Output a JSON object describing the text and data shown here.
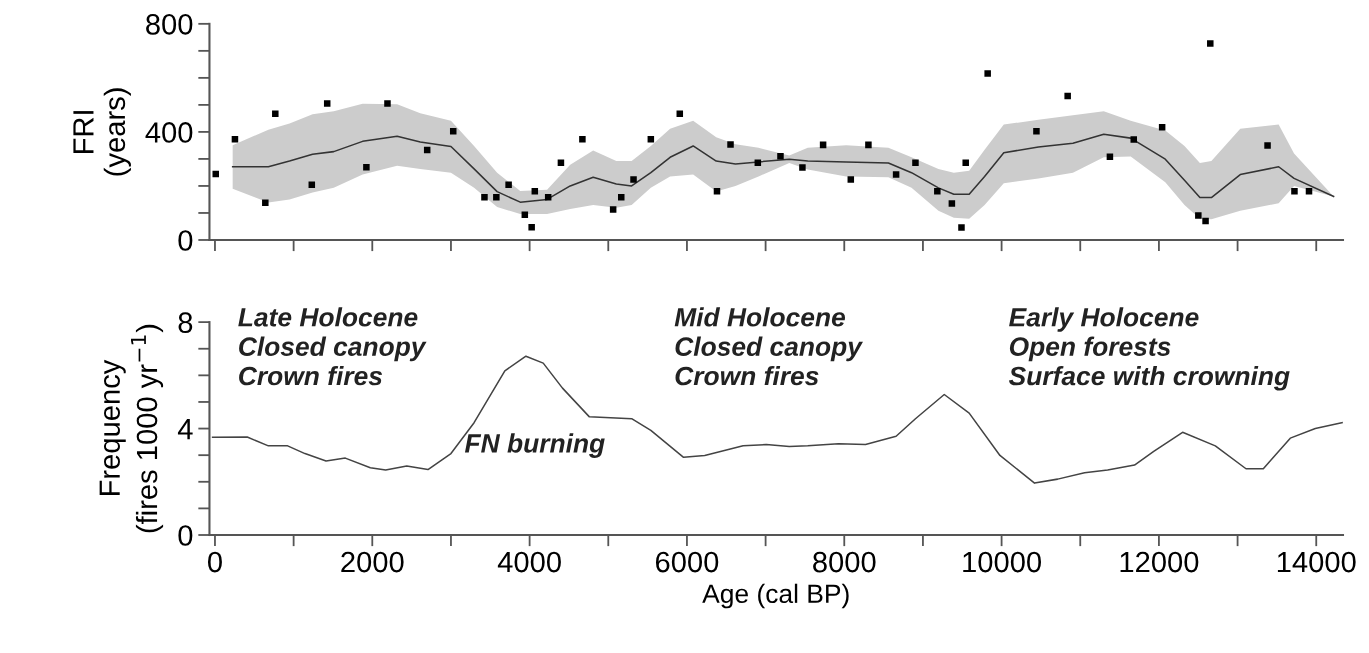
{
  "chart_data": [
    {
      "type": "scatter",
      "ylabel": "FRI\n(years)",
      "xlim": [
        -70,
        14340
      ],
      "ylim": [
        0,
        800
      ],
      "tick_labels": "y",
      "grid": false,
      "xticks": [
        {
          "value": 0,
          "label": null
        },
        {
          "value": 1000,
          "label": null
        },
        {
          "value": 2000,
          "label": null
        },
        {
          "value": 3000,
          "label": null
        },
        {
          "value": 4000,
          "label": null
        },
        {
          "value": 5000,
          "label": null
        },
        {
          "value": 6000,
          "label": null
        },
        {
          "value": 7000,
          "label": null
        },
        {
          "value": 8000,
          "label": null
        },
        {
          "value": 9000,
          "label": null
        },
        {
          "value": 10000,
          "label": null
        },
        {
          "value": 11000,
          "label": null
        },
        {
          "value": 12000,
          "label": null
        },
        {
          "value": 13000,
          "label": null
        },
        {
          "value": 14000,
          "label": null
        }
      ],
      "yticks": [
        0,
        {
          "value": 100,
          "label": null
        },
        {
          "value": 200,
          "label": null
        },
        {
          "value": 300,
          "label": null
        },
        400,
        {
          "value": 500,
          "label": null
        },
        {
          "value": 600,
          "label": null
        },
        {
          "value": 700,
          "label": null
        },
        800
      ],
      "series": [
        {
          "marker": "square",
          "color": "#000000",
          "x": [
            10,
            254,
            640,
            767,
            1231,
            1427,
            1925,
            2193,
            2698,
            3029,
            3426,
            3577,
            3733,
            3939,
            4026,
            4066,
            4236,
            4398,
            4671,
            5062,
            5165,
            5321,
            5541,
            5909,
            6382,
            6554,
            6901,
            7189,
            7468,
            7731,
            8083,
            8307,
            8659,
            8905,
            9183,
            9368,
            9490,
            9544,
            9823,
            10443,
            10840,
            11377,
            11680,
            12041,
            12501,
            12593,
            12653,
            13381,
            13723,
            13908
          ],
          "values": [
            244,
            373,
            138,
            467,
            204,
            505,
            269,
            505,
            333,
            402,
            158,
            158,
            204,
            93,
            47,
            180,
            158,
            286,
            373,
            113,
            158,
            224,
            373,
            467,
            180,
            353,
            286,
            310,
            268,
            352,
            224,
            352,
            242,
            286,
            180,
            135,
            46,
            286,
            616,
            402,
            533,
            308,
            372,
            417,
            91,
            70,
            727,
            350,
            180,
            180
          ]
        },
        {
          "type": "line",
          "marker": "none",
          "line_style": "solid",
          "color": "#333333",
          "x": [
            225,
            679,
            948,
            1241,
            1510,
            1877,
            2316,
            2610,
            3000,
            3294,
            3587,
            3881,
            4222,
            4516,
            4808,
            5102,
            5297,
            5541,
            5786,
            6079,
            6372,
            6617,
            6910,
            7301,
            7536,
            8024,
            8561,
            8855,
            9197,
            9393,
            9588,
            9784,
            10028,
            10468,
            10907,
            11299,
            11641,
            12081,
            12325,
            12521,
            12667,
            13034,
            13522,
            13718,
            14221
          ],
          "values": [
            271,
            271,
            292,
            317,
            327,
            365,
            384,
            363,
            346,
            263,
            179,
            140,
            150,
            200,
            232,
            207,
            200,
            249,
            306,
            348,
            292,
            281,
            289,
            299,
            292,
            289,
            285,
            249,
            193,
            169,
            169,
            235,
            323,
            344,
            358,
            391,
            377,
            299,
            221,
            157,
            157,
            242,
            271,
            228,
            161
          ],
          "upper": [
            351,
            408,
            431,
            465,
            476,
            504,
            502,
            469,
            441,
            348,
            249,
            181,
            186,
            278,
            331,
            292,
            292,
            348,
            412,
            441,
            380,
            354,
            341,
            313,
            341,
            351,
            341,
            306,
            263,
            249,
            256,
            334,
            427,
            445,
            462,
            476,
            441,
            405,
            348,
            285,
            292,
            412,
            427,
            320,
            161
          ],
          "lower": [
            190,
            139,
            150,
            176,
            193,
            242,
            275,
            263,
            249,
            193,
            122,
            96,
            96,
            115,
            129,
            119,
            129,
            193,
            235,
            242,
            179,
            200,
            235,
            285,
            261,
            235,
            232,
            193,
            108,
            82,
            79,
            129,
            210,
            228,
            249,
            306,
            309,
            214,
            129,
            79,
            77,
            108,
            136,
            200,
            161
          ]
        }
      ]
    },
    {
      "type": "line",
      "xlabel": "Age (cal BP)",
      "ylabel": "Frequency\n(fires 1000 yr$^{−1}$)",
      "xlim": [
        -70,
        14340
      ],
      "ylim": [
        0,
        8
      ],
      "grid": false,
      "xticks": [
        0,
        {
          "value": 1000,
          "label": null
        },
        2000,
        {
          "value": 3000,
          "label": null
        },
        4000,
        {
          "value": 5000,
          "label": null
        },
        6000,
        {
          "value": 7000,
          "label": null
        },
        8000,
        {
          "value": 9000,
          "label": null
        },
        10000,
        {
          "value": 11000,
          "label": null
        },
        12000,
        {
          "value": 13000,
          "label": null
        },
        14000
      ],
      "yticks": [
        0,
        {
          "value": 1,
          "label": null
        },
        {
          "value": 2,
          "label": null
        },
        {
          "value": 3,
          "label": null
        },
        4,
        {
          "value": 5,
          "label": null
        },
        {
          "value": 6,
          "label": null
        },
        {
          "value": 7,
          "label": null
        },
        8
      ],
      "annotations": [
        "Late Holocene\nClosed canopy\nCrown fires",
        "FN burning",
        "Mid Holocene\nClosed canopy\nCrown fires",
        "Early Holocene\nOpen forests\nSurface with crowning"
      ],
      "series": [
        {
          "marker": "none",
          "line_style": "solid",
          "color": "#444444",
          "x": [
            -30,
            410,
            679,
            924,
            1144,
            1412,
            1657,
            1975,
            2170,
            2438,
            2708,
            3000,
            3294,
            3685,
            3953,
            4173,
            4418,
            4760,
            5297,
            5541,
            5957,
            6226,
            6714,
            7008,
            7301,
            7536,
            7926,
            8270,
            8659,
            8905,
            9271,
            9588,
            9979,
            10419,
            10713,
            11055,
            11348,
            11690,
            11934,
            12301,
            12717,
            13107,
            13327,
            13670,
            13988,
            14329
          ],
          "values": [
            3.67,
            3.68,
            3.35,
            3.35,
            3.06,
            2.78,
            2.89,
            2.53,
            2.44,
            2.59,
            2.46,
            3.06,
            4.22,
            6.17,
            6.72,
            6.46,
            5.52,
            4.44,
            4.37,
            3.93,
            2.92,
            2.99,
            3.35,
            3.4,
            3.33,
            3.35,
            3.43,
            3.4,
            3.71,
            4.37,
            5.28,
            4.58,
            2.99,
            1.95,
            2.1,
            2.34,
            2.44,
            2.63,
            3.14,
            3.86,
            3.35,
            2.49,
            2.49,
            3.64,
            4.0,
            4.22
          ]
        }
      ]
    }
  ]
}
